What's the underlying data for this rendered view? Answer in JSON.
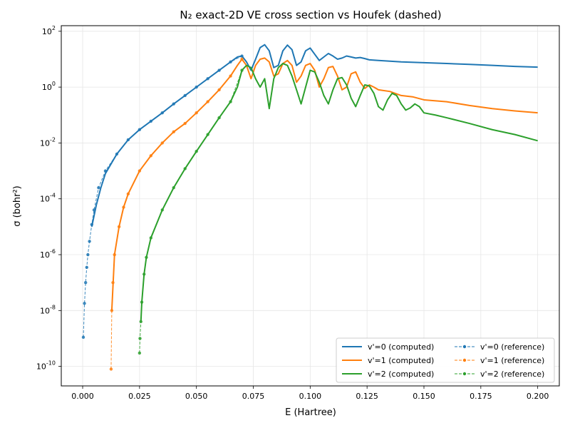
{
  "chart_data": {
    "type": "line",
    "title": "N₂ exact-2D VE cross section vs Houfek (dashed)",
    "xlabel": "E (Hartree)",
    "ylabel": "σ (bohr²)",
    "xlim": [
      -0.0094,
      0.2095
    ],
    "ylim_log10": [
      -10.7,
      2.2
    ],
    "yscale": "log",
    "grid": true,
    "legend_position": "lower-right",
    "x_ticks": [
      "0.000",
      "0.025",
      "0.050",
      "0.075",
      "0.100",
      "0.125",
      "0.150",
      "0.175",
      "0.200"
    ],
    "y_ticks_exponents": [
      -10,
      -8,
      -6,
      -4,
      -2,
      0,
      2
    ],
    "series": [
      {
        "name": "v'=0 (computed)",
        "color": "#1f77b4",
        "style": "solid",
        "x": [
          0.004,
          0.006,
          0.008,
          0.01,
          0.015,
          0.02,
          0.025,
          0.03,
          0.035,
          0.04,
          0.045,
          0.05,
          0.055,
          0.06,
          0.065,
          0.068,
          0.07,
          0.072,
          0.074,
          0.076,
          0.078,
          0.08,
          0.082,
          0.084,
          0.086,
          0.088,
          0.09,
          0.092,
          0.094,
          0.096,
          0.098,
          0.1,
          0.102,
          0.104,
          0.106,
          0.108,
          0.11,
          0.112,
          0.114,
          0.116,
          0.118,
          0.12,
          0.122,
          0.124,
          0.126,
          0.13,
          0.135,
          0.14,
          0.15,
          0.16,
          0.17,
          0.18,
          0.19,
          0.2
        ],
        "y": [
          1e-05,
          6e-05,
          0.00025,
          0.0008,
          0.004,
          0.013,
          0.03,
          0.06,
          0.12,
          0.25,
          0.5,
          1.0,
          2.0,
          4.0,
          8.0,
          12.0,
          13.0,
          8.0,
          4.0,
          10.0,
          26.0,
          33.0,
          20.0,
          5.0,
          6.0,
          20.0,
          32.0,
          22.0,
          6.0,
          8.0,
          20.0,
          25.0,
          15.0,
          9.0,
          12.0,
          16.0,
          13.0,
          10.0,
          11.0,
          13.0,
          12.0,
          11.0,
          11.5,
          10.5,
          9.5,
          9.0,
          8.5,
          8.0,
          7.5,
          7.0,
          6.5,
          6.0,
          5.5,
          5.2
        ]
      },
      {
        "name": "v'=0 (reference)",
        "color": "#1f77b4",
        "style": "dashed",
        "x": [
          0.0003,
          0.0008,
          0.0013,
          0.0018,
          0.0023,
          0.003,
          0.004,
          0.005,
          0.007,
          0.01,
          0.015,
          0.02,
          0.025,
          0.03,
          0.035,
          0.04,
          0.045,
          0.05,
          0.055,
          0.06,
          0.065,
          0.07
        ],
        "y": [
          1.1e-09,
          1.8e-08,
          1e-07,
          3.5e-07,
          1e-06,
          3e-06,
          1.2e-05,
          4e-05,
          0.00025,
          0.001,
          0.004,
          0.013,
          0.03,
          0.06,
          0.12,
          0.25,
          0.5,
          1.0,
          2.0,
          4.0,
          8.0,
          13.0
        ]
      },
      {
        "name": "v'=1 (computed)",
        "color": "#ff7f0e",
        "style": "solid",
        "x": [
          0.0128,
          0.014,
          0.016,
          0.018,
          0.02,
          0.025,
          0.03,
          0.035,
          0.04,
          0.045,
          0.05,
          0.055,
          0.06,
          0.065,
          0.068,
          0.07,
          0.072,
          0.074,
          0.076,
          0.078,
          0.08,
          0.082,
          0.084,
          0.086,
          0.088,
          0.09,
          0.092,
          0.094,
          0.096,
          0.098,
          0.1,
          0.102,
          0.104,
          0.106,
          0.108,
          0.11,
          0.112,
          0.114,
          0.116,
          0.118,
          0.12,
          0.122,
          0.124,
          0.126,
          0.128,
          0.13,
          0.135,
          0.14,
          0.145,
          0.15,
          0.16,
          0.17,
          0.18,
          0.19,
          0.2
        ],
        "y": [
          1e-08,
          1e-06,
          1e-05,
          5e-05,
          0.00015,
          0.001,
          0.0035,
          0.01,
          0.025,
          0.05,
          0.12,
          0.3,
          0.8,
          2.5,
          6.0,
          10.0,
          6.0,
          2.0,
          6.0,
          10.0,
          11.0,
          8.0,
          2.5,
          3.0,
          7.0,
          9.0,
          6.0,
          1.5,
          2.5,
          6.0,
          7.0,
          4.0,
          1.0,
          2.0,
          5.0,
          5.5,
          2.5,
          0.8,
          1.0,
          3.0,
          3.5,
          1.5,
          0.9,
          1.2,
          1.0,
          0.8,
          0.7,
          0.5,
          0.45,
          0.35,
          0.3,
          0.22,
          0.17,
          0.14,
          0.12
        ]
      },
      {
        "name": "v'=1 (reference)",
        "color": "#ff7f0e",
        "style": "dashed",
        "x": [
          0.0125,
          0.0128,
          0.0133,
          0.014,
          0.016,
          0.018,
          0.02,
          0.025,
          0.03,
          0.035,
          0.04,
          0.045,
          0.05,
          0.055,
          0.06,
          0.065,
          0.07
        ],
        "y": [
          8e-11,
          1e-08,
          1e-07,
          1e-06,
          1e-05,
          5e-05,
          0.00015,
          0.001,
          0.0035,
          0.01,
          0.025,
          0.05,
          0.12,
          0.3,
          0.8,
          2.5,
          10.0
        ]
      },
      {
        "name": "v'=2 (computed)",
        "color": "#2ca02c",
        "style": "solid",
        "x": [
          0.0256,
          0.026,
          0.027,
          0.028,
          0.03,
          0.035,
          0.04,
          0.045,
          0.05,
          0.055,
          0.06,
          0.065,
          0.068,
          0.07,
          0.072,
          0.074,
          0.076,
          0.078,
          0.08,
          0.082,
          0.084,
          0.086,
          0.088,
          0.09,
          0.092,
          0.094,
          0.096,
          0.098,
          0.1,
          0.102,
          0.104,
          0.106,
          0.108,
          0.11,
          0.112,
          0.114,
          0.116,
          0.118,
          0.12,
          0.122,
          0.124,
          0.126,
          0.128,
          0.13,
          0.132,
          0.134,
          0.136,
          0.138,
          0.14,
          0.142,
          0.144,
          0.146,
          0.148,
          0.15,
          0.155,
          0.16,
          0.17,
          0.18,
          0.19,
          0.2
        ],
        "y": [
          4e-09,
          2e-08,
          2e-07,
          8e-07,
          4e-06,
          4e-05,
          0.00025,
          0.0012,
          0.005,
          0.02,
          0.08,
          0.3,
          1.0,
          4.0,
          6.0,
          5.0,
          2.0,
          1.0,
          2.0,
          0.17,
          2.0,
          5.0,
          7.0,
          6.0,
          2.5,
          0.8,
          0.25,
          1.0,
          4.0,
          3.5,
          1.5,
          0.5,
          0.25,
          0.8,
          2.0,
          2.2,
          1.2,
          0.4,
          0.2,
          0.5,
          1.2,
          1.1,
          0.6,
          0.2,
          0.15,
          0.35,
          0.6,
          0.5,
          0.25,
          0.15,
          0.18,
          0.25,
          0.2,
          0.12,
          0.1,
          0.08,
          0.05,
          0.03,
          0.02,
          0.012
        ]
      },
      {
        "name": "v'=2 (reference)",
        "color": "#2ca02c",
        "style": "dashed",
        "x": [
          0.025,
          0.0252,
          0.0256,
          0.026,
          0.027,
          0.028,
          0.03,
          0.035,
          0.04,
          0.045,
          0.05,
          0.055,
          0.06,
          0.065,
          0.07
        ],
        "y": [
          3e-10,
          1e-09,
          4e-09,
          2e-08,
          2e-07,
          8e-07,
          4e-06,
          4e-05,
          0.00025,
          0.0012,
          0.005,
          0.02,
          0.08,
          0.3,
          4.0
        ]
      }
    ]
  }
}
